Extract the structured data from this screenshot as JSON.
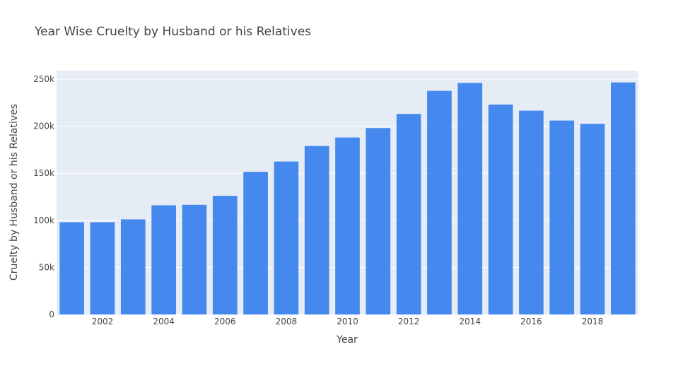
{
  "chart_data": {
    "type": "bar",
    "title": "Year Wise Cruelty by Husband or his Relatives",
    "xlabel": "Year",
    "ylabel": "Cruelty by Husband or his Relatives",
    "categories": [
      2001,
      2002,
      2003,
      2004,
      2005,
      2006,
      2007,
      2008,
      2009,
      2010,
      2011,
      2012,
      2013,
      2014,
      2015,
      2016,
      2017,
      2018,
      2019
    ],
    "values": [
      98000,
      98000,
      101000,
      116000,
      116500,
      126000,
      151500,
      162500,
      179000,
      188000,
      198000,
      213000,
      237500,
      246000,
      223000,
      216500,
      206000,
      202500,
      246500
    ],
    "x_ticks": [
      2002,
      2004,
      2006,
      2008,
      2010,
      2012,
      2014,
      2016,
      2018
    ],
    "x_tick_labels": [
      "2002",
      "2004",
      "2006",
      "2008",
      "2010",
      "2012",
      "2014",
      "2016",
      "2018"
    ],
    "y_ticks": [
      0,
      50000,
      100000,
      150000,
      200000,
      250000
    ],
    "y_tick_labels": [
      "0",
      "50k",
      "100k",
      "150k",
      "200k",
      "250k"
    ],
    "ylim": [
      0,
      259000
    ],
    "xlim": [
      2000.5,
      2019.5
    ],
    "bar_color": "#4588ee",
    "plot_bg": "#e5ecf6",
    "grid": true,
    "legend": false
  }
}
